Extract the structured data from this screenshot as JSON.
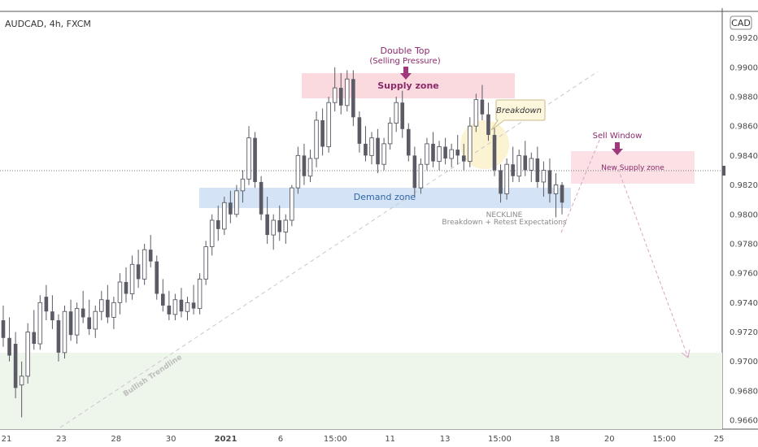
{
  "header": {
    "symbol": "AUDCAD, 4h, FXCM",
    "currency": "CAD"
  },
  "colors": {
    "candle": "#5b5b66",
    "supply_fill": "#f9d6dc",
    "demand_fill": "#cfe0f4",
    "lower_zone_fill": "#eef5ea",
    "annotation": "#8b2a6a",
    "demand_text": "#2f66a8",
    "neckline_text": "#8a8a8a"
  },
  "annotations": {
    "double_top": "Double Top",
    "selling_pressure": "(Selling Pressure)",
    "supply_zone": "Supply zone",
    "demand_zone": "Demand zone",
    "breakdown": "Breakdown",
    "sell_window": "Sell Window",
    "new_supply_zone": "New Supply zone",
    "neckline": "NECKLINE",
    "retest": "Breakdown + Retest Expectations",
    "trendline": "Bullish Trendline"
  },
  "chart_data": {
    "type": "candlestick",
    "symbol": "AUDCAD",
    "timeframe": "4h",
    "source": "FXCM",
    "y_ticks": [
      "0.99200",
      "0.99000",
      "0.98800",
      "0.98600",
      "0.98400",
      "0.98200",
      "0.98000",
      "0.97800",
      "0.97600",
      "0.97400",
      "0.97200",
      "0.97000",
      "0.96800",
      "0.96600"
    ],
    "x_ticks": [
      "21",
      "23",
      "28",
      "30",
      "2021",
      "6",
      "15:00",
      "11",
      "13",
      "15:00",
      "18",
      "20",
      "15:00",
      "25"
    ],
    "ylim": [
      0.9654,
      0.9938
    ],
    "current_price": 0.983,
    "zones": [
      {
        "name": "Supply zone",
        "y_range": [
          0.9881,
          0.9897
        ]
      },
      {
        "name": "Demand zone",
        "y_range": [
          0.9802,
          0.9815
        ]
      },
      {
        "name": "New Supply zone",
        "y_range": [
          0.982,
          0.9844
        ]
      },
      {
        "name": "lower zone",
        "y_range": [
          0.9654,
          0.9695
        ]
      }
    ],
    "ohlc": [
      [
        0.9728,
        0.9738,
        0.971,
        0.9716
      ],
      [
        0.9716,
        0.973,
        0.97,
        0.9704
      ],
      [
        0.9712,
        0.972,
        0.9675,
        0.9682
      ],
      [
        0.9684,
        0.97,
        0.9662,
        0.969
      ],
      [
        0.969,
        0.9726,
        0.9685,
        0.972
      ],
      [
        0.972,
        0.9735,
        0.9708,
        0.9712
      ],
      [
        0.9712,
        0.9745,
        0.9708,
        0.974
      ],
      [
        0.9744,
        0.9752,
        0.9728,
        0.9734
      ],
      [
        0.9734,
        0.9745,
        0.9722,
        0.9728
      ],
      [
        0.9728,
        0.9732,
        0.97,
        0.9706
      ],
      [
        0.9706,
        0.9738,
        0.9702,
        0.9734
      ],
      [
        0.9734,
        0.9742,
        0.9714,
        0.9718
      ],
      [
        0.9718,
        0.974,
        0.9712,
        0.9736
      ],
      [
        0.9736,
        0.9748,
        0.9726,
        0.973
      ],
      [
        0.973,
        0.9742,
        0.9718,
        0.9722
      ],
      [
        0.9722,
        0.9738,
        0.9716,
        0.9734
      ],
      [
        0.9734,
        0.9748,
        0.9728,
        0.9742
      ],
      [
        0.9742,
        0.9752,
        0.9726,
        0.973
      ],
      [
        0.973,
        0.9744,
        0.9722,
        0.974
      ],
      [
        0.974,
        0.976,
        0.9732,
        0.9754
      ],
      [
        0.9754,
        0.9764,
        0.974,
        0.9746
      ],
      [
        0.9746,
        0.9772,
        0.9742,
        0.9766
      ],
      [
        0.9766,
        0.9776,
        0.975,
        0.9756
      ],
      [
        0.9756,
        0.978,
        0.9752,
        0.9776
      ],
      [
        0.9776,
        0.9786,
        0.9764,
        0.9768
      ],
      [
        0.9768,
        0.9772,
        0.9742,
        0.9746
      ],
      [
        0.9746,
        0.9756,
        0.9734,
        0.9738
      ],
      [
        0.9738,
        0.9748,
        0.9728,
        0.9732
      ],
      [
        0.9732,
        0.9746,
        0.9728,
        0.9742
      ],
      [
        0.9742,
        0.975,
        0.973,
        0.9734
      ],
      [
        0.9734,
        0.9744,
        0.9728,
        0.974
      ],
      [
        0.974,
        0.9752,
        0.9732,
        0.9736
      ],
      [
        0.9736,
        0.976,
        0.9732,
        0.9756
      ],
      [
        0.9756,
        0.9782,
        0.9752,
        0.9778
      ],
      [
        0.9778,
        0.98,
        0.9772,
        0.9796
      ],
      [
        0.9796,
        0.9806,
        0.9782,
        0.979
      ],
      [
        0.979,
        0.9812,
        0.9786,
        0.9808
      ],
      [
        0.9808,
        0.9816,
        0.9794,
        0.98
      ],
      [
        0.98,
        0.982,
        0.9798,
        0.9816
      ],
      [
        0.9816,
        0.983,
        0.9808,
        0.9824
      ],
      [
        0.9824,
        0.986,
        0.982,
        0.9852
      ],
      [
        0.9852,
        0.9856,
        0.9818,
        0.9822
      ],
      [
        0.9822,
        0.9826,
        0.9796,
        0.98
      ],
      [
        0.98,
        0.9812,
        0.978,
        0.9786
      ],
      [
        0.9786,
        0.98,
        0.9776,
        0.9796
      ],
      [
        0.9796,
        0.9806,
        0.9782,
        0.9788
      ],
      [
        0.9788,
        0.98,
        0.978,
        0.9796
      ],
      [
        0.9796,
        0.982,
        0.9792,
        0.9818
      ],
      [
        0.9818,
        0.9846,
        0.9814,
        0.984
      ],
      [
        0.984,
        0.9848,
        0.982,
        0.9826
      ],
      [
        0.9826,
        0.9844,
        0.9822,
        0.9838
      ],
      [
        0.9838,
        0.987,
        0.9832,
        0.9864
      ],
      [
        0.9864,
        0.9872,
        0.984,
        0.9846
      ],
      [
        0.9846,
        0.988,
        0.9842,
        0.9876
      ],
      [
        0.9876,
        0.99,
        0.987,
        0.9886
      ],
      [
        0.9886,
        0.9896,
        0.9868,
        0.9874
      ],
      [
        0.9874,
        0.9898,
        0.987,
        0.9892
      ],
      [
        0.9892,
        0.9898,
        0.986,
        0.9866
      ],
      [
        0.9866,
        0.987,
        0.9842,
        0.9848
      ],
      [
        0.9848,
        0.986,
        0.9836,
        0.984
      ],
      [
        0.984,
        0.9856,
        0.9834,
        0.9852
      ],
      [
        0.9852,
        0.9858,
        0.9828,
        0.9834
      ],
      [
        0.9834,
        0.9852,
        0.983,
        0.9848
      ],
      [
        0.9848,
        0.9866,
        0.9844,
        0.9862
      ],
      [
        0.9862,
        0.988,
        0.9856,
        0.9876
      ],
      [
        0.9876,
        0.9884,
        0.9852,
        0.9858
      ],
      [
        0.9858,
        0.9862,
        0.9836,
        0.984
      ],
      [
        0.984,
        0.9846,
        0.9812,
        0.9818
      ],
      [
        0.9818,
        0.9838,
        0.9814,
        0.9834
      ],
      [
        0.9834,
        0.9852,
        0.983,
        0.9848
      ],
      [
        0.9848,
        0.9856,
        0.9832,
        0.9836
      ],
      [
        0.9836,
        0.985,
        0.983,
        0.9846
      ],
      [
        0.9846,
        0.9852,
        0.9834,
        0.9838
      ],
      [
        0.9838,
        0.9848,
        0.9832,
        0.9844
      ],
      [
        0.9844,
        0.9854,
        0.9834,
        0.984
      ],
      [
        0.984,
        0.9848,
        0.983,
        0.9836
      ],
      [
        0.9836,
        0.9866,
        0.9832,
        0.986
      ],
      [
        0.986,
        0.9882,
        0.9856,
        0.9878
      ],
      [
        0.9878,
        0.9888,
        0.9864,
        0.9868
      ],
      [
        0.9868,
        0.9876,
        0.985,
        0.9854
      ],
      [
        0.9854,
        0.986,
        0.9826,
        0.983
      ],
      [
        0.983,
        0.9834,
        0.9808,
        0.9814
      ],
      [
        0.9814,
        0.9838,
        0.981,
        0.9834
      ],
      [
        0.9834,
        0.9846,
        0.9822,
        0.9826
      ],
      [
        0.9826,
        0.9844,
        0.9822,
        0.984
      ],
      [
        0.984,
        0.985,
        0.9826,
        0.983
      ],
      [
        0.983,
        0.9842,
        0.9822,
        0.9838
      ],
      [
        0.9838,
        0.9846,
        0.9818,
        0.9822
      ],
      [
        0.9822,
        0.9836,
        0.9812,
        0.983
      ],
      [
        0.983,
        0.9838,
        0.9808,
        0.9814
      ],
      [
        0.9814,
        0.9828,
        0.9798,
        0.982
      ],
      [
        0.982,
        0.9822,
        0.98,
        0.9808
      ]
    ]
  }
}
